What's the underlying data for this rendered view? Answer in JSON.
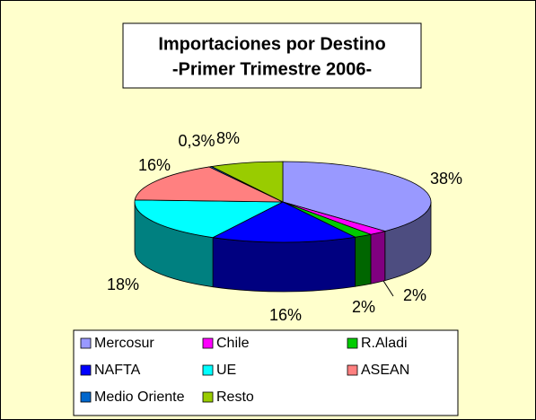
{
  "chart_data": {
    "type": "pie3d",
    "title": [
      "Importaciones por Destino",
      "-Primer Trimestre 2006-"
    ],
    "categories": [
      "Mercosur",
      "Chile",
      "R.Aladi",
      "NAFTA",
      "UE",
      "ASEAN",
      "Medio Oriente",
      "Resto"
    ],
    "values": [
      38,
      2,
      2,
      16,
      18,
      16,
      0.3,
      8
    ],
    "value_labels": [
      "38%",
      "2%",
      "2%",
      "16%",
      "18%",
      "16%",
      "0,3%",
      "8%"
    ],
    "colors": [
      "#9999ff",
      "#ff00ff",
      "#00cc00",
      "#0000ff",
      "#00ffff",
      "#ff8080",
      "#0066cc",
      "#99cc00"
    ],
    "legend": "bottom"
  }
}
